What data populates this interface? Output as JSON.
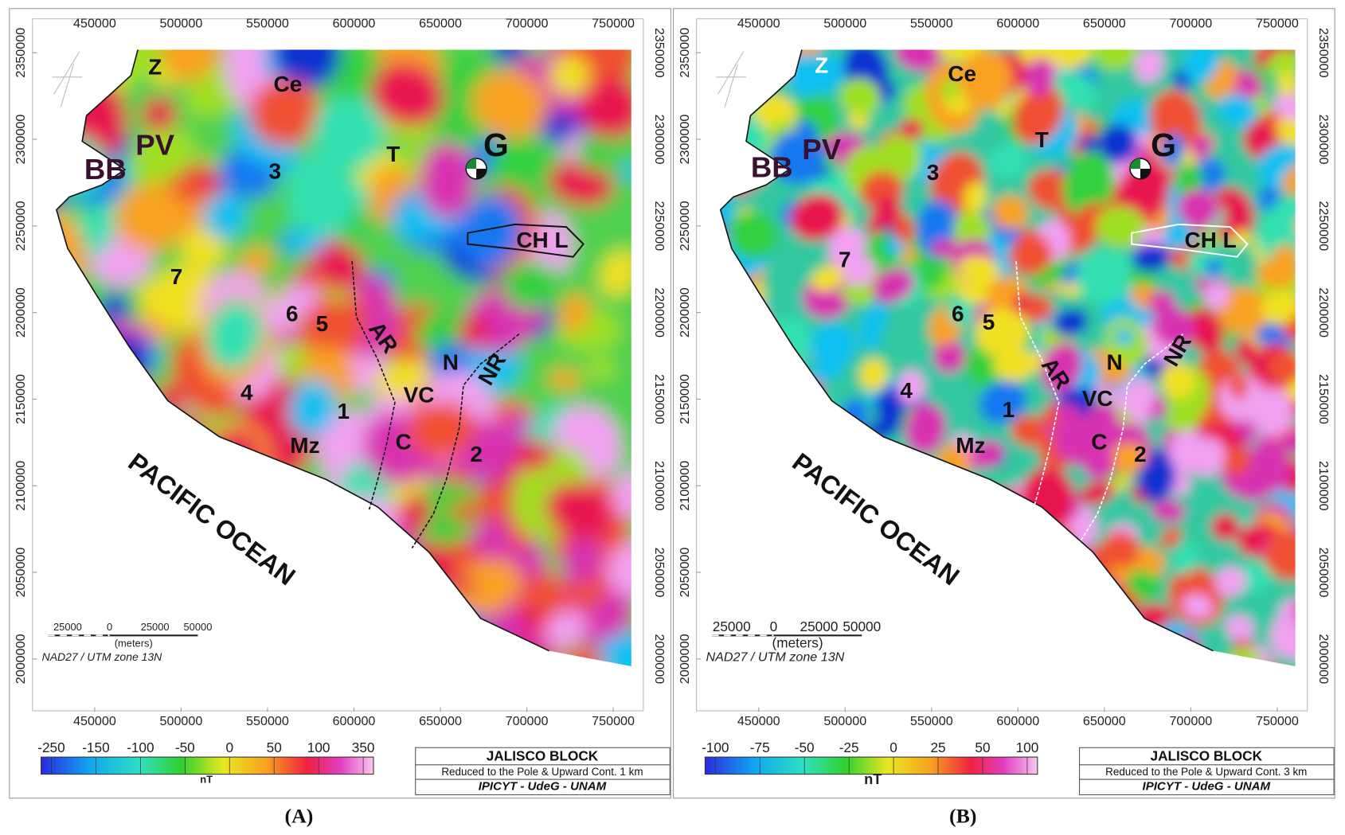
{
  "panels": [
    {
      "label": "(A)",
      "xticks": [
        450000,
        500000,
        550000,
        600000,
        650000,
        700000,
        750000
      ],
      "yticks": [
        2350000,
        2300000,
        2250000,
        2200000,
        2150000,
        2100000,
        2050000,
        2000000
      ],
      "xlim": [
        415000,
        760000
      ],
      "ylim": [
        1975000,
        2375000
      ],
      "places": [
        "Z",
        "Ce",
        "PV",
        "BB",
        "T",
        "G",
        "3",
        "CH L",
        "7",
        "6",
        "5",
        "AR",
        "N",
        "NR",
        "VC",
        "4",
        "1",
        "C",
        "Mz",
        "2"
      ],
      "ocean": "PACIFIC  OCEAN",
      "scale_bar": {
        "labels": [
          25000,
          0,
          25000,
          50000
        ],
        "unit": "(meters)",
        "projection": "NAD27 / UTM zone 13N"
      },
      "colorbar": {
        "ticks": [
          -250,
          -150,
          -100,
          -50,
          0,
          50,
          100,
          350
        ],
        "unit": "nT"
      },
      "title_box": {
        "title": "JALISCO  BLOCK",
        "subtitle": "Reduced to the Pole & Upward Cont. 1 km",
        "credit": "IPICYT - UdeG - UNAM"
      }
    },
    {
      "label": "(B)",
      "xticks": [
        450000,
        500000,
        550000,
        600000,
        650000,
        700000,
        750000
      ],
      "yticks": [
        2350000,
        2300000,
        2250000,
        2200000,
        2150000,
        2100000,
        2050000,
        2000000
      ],
      "xlim": [
        415000,
        760000
      ],
      "ylim": [
        1975000,
        2375000
      ],
      "places": [
        "Z",
        "Ce",
        "PV",
        "BB",
        "T",
        "G",
        "3",
        "CH L",
        "7",
        "6",
        "5",
        "AR",
        "N",
        "NR",
        "VC",
        "4",
        "1",
        "C",
        "Mz",
        "2"
      ],
      "ocean": "PACIFIC  OCEAN",
      "scale_bar": {
        "labels": [
          25000,
          0,
          25000,
          50000
        ],
        "unit": "(meters)",
        "projection": "NAD27 / UTM zone 13N"
      },
      "colorbar": {
        "ticks": [
          -100,
          -75,
          -50,
          -25,
          0,
          25,
          50,
          100
        ],
        "unit": "nT"
      },
      "title_box": {
        "title": "JALISCO  BLOCK",
        "subtitle": "Reduced to the Pole & Upward Cont. 3 km",
        "credit": "IPICYT - UdeG - UNAM"
      }
    }
  ]
}
